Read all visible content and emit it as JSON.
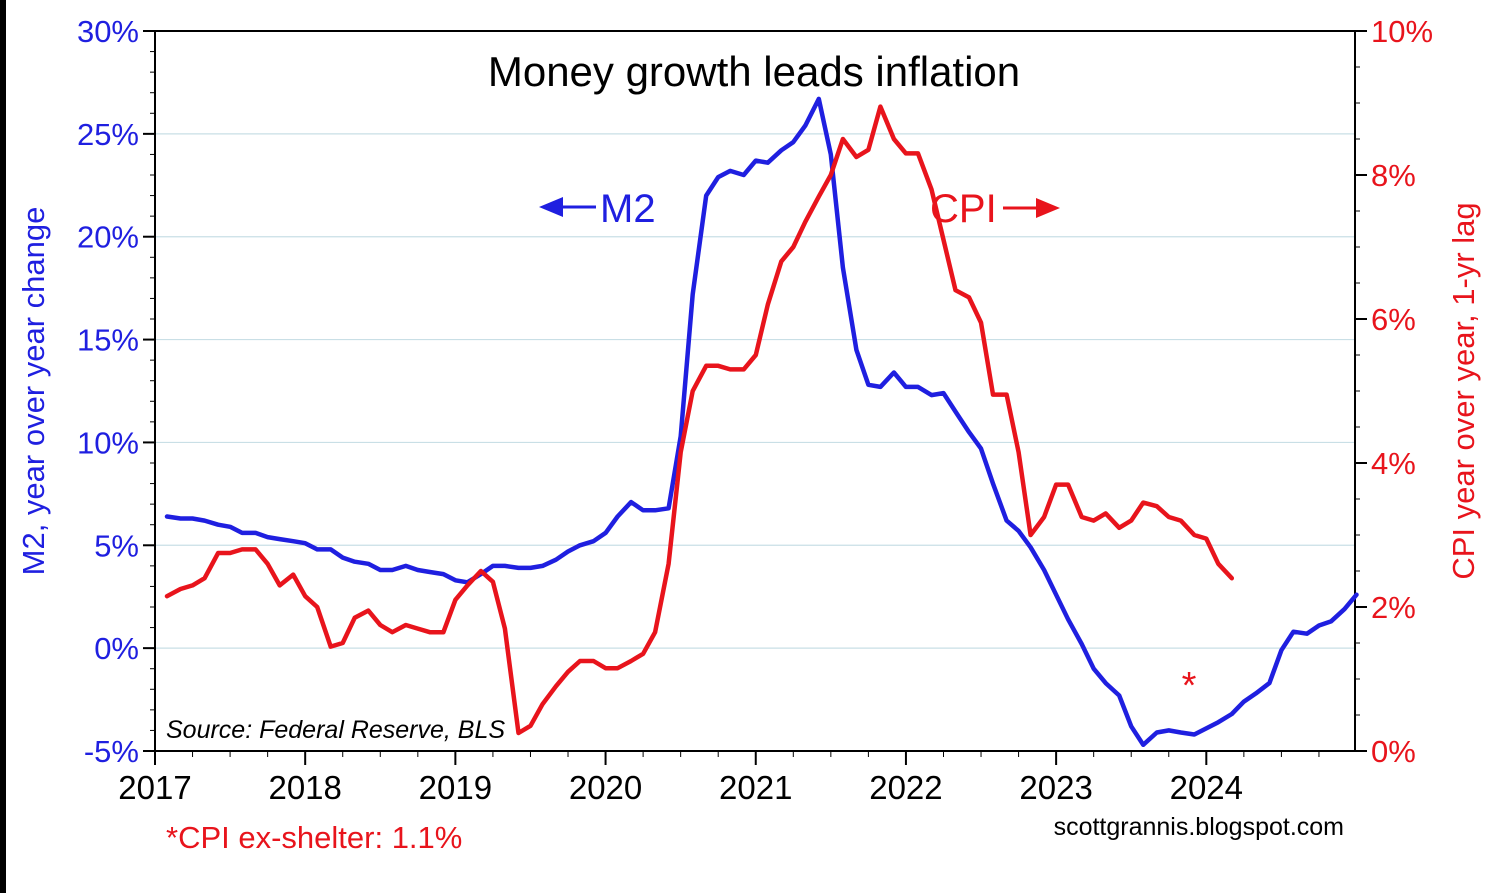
{
  "chart_data": {
    "type": "line",
    "title": "Money growth leads inflation",
    "xlabel": "",
    "ylabel": "M2, year over year change",
    "ylabel_right": "CPI year over year,  1-yr lag",
    "x_ticks": [
      "2017",
      "2018",
      "2019",
      "2020",
      "2021",
      "2022",
      "2023",
      "2024"
    ],
    "xlim": [
      2017,
      2024.99
    ],
    "y_left": {
      "ylim": [
        -5,
        30
      ],
      "ticks": [
        "30%",
        "25%",
        "20%",
        "15%",
        "10%",
        "5%",
        "0%",
        "-5%"
      ]
    },
    "y_right": {
      "ylim": [
        0,
        10
      ],
      "ticks": [
        "10%",
        "8%",
        "6%",
        "4%",
        "2%",
        "0%"
      ]
    },
    "grid": "horizontal",
    "series": [
      {
        "name": "M2",
        "axis": "left",
        "color": "#1f1fe0",
        "label": "M2",
        "points": [
          [
            2017.08,
            6.4
          ],
          [
            2017.17,
            6.3
          ],
          [
            2017.25,
            6.3
          ],
          [
            2017.33,
            6.2
          ],
          [
            2017.42,
            6.0
          ],
          [
            2017.5,
            5.9
          ],
          [
            2017.58,
            5.6
          ],
          [
            2017.67,
            5.6
          ],
          [
            2017.75,
            5.4
          ],
          [
            2017.83,
            5.3
          ],
          [
            2017.92,
            5.2
          ],
          [
            2018.0,
            5.1
          ],
          [
            2018.08,
            4.8
          ],
          [
            2018.17,
            4.8
          ],
          [
            2018.25,
            4.4
          ],
          [
            2018.33,
            4.2
          ],
          [
            2018.42,
            4.1
          ],
          [
            2018.5,
            3.8
          ],
          [
            2018.58,
            3.8
          ],
          [
            2018.67,
            4.0
          ],
          [
            2018.75,
            3.8
          ],
          [
            2018.83,
            3.7
          ],
          [
            2018.92,
            3.6
          ],
          [
            2019.0,
            3.3
          ],
          [
            2019.08,
            3.2
          ],
          [
            2019.17,
            3.6
          ],
          [
            2019.25,
            4.0
          ],
          [
            2019.33,
            4.0
          ],
          [
            2019.42,
            3.9
          ],
          [
            2019.5,
            3.9
          ],
          [
            2019.58,
            4.0
          ],
          [
            2019.67,
            4.3
          ],
          [
            2019.75,
            4.7
          ],
          [
            2019.83,
            5.0
          ],
          [
            2019.92,
            5.2
          ],
          [
            2020.0,
            5.6
          ],
          [
            2020.08,
            6.4
          ],
          [
            2020.17,
            7.1
          ],
          [
            2020.25,
            6.7
          ],
          [
            2020.33,
            6.7
          ],
          [
            2020.42,
            6.8
          ],
          [
            2020.5,
            10.3
          ],
          [
            2020.58,
            17.2
          ],
          [
            2020.67,
            22.0
          ],
          [
            2020.75,
            22.9
          ],
          [
            2020.83,
            23.2
          ],
          [
            2020.92,
            23.0
          ],
          [
            2021.0,
            23.7
          ],
          [
            2021.08,
            23.6
          ],
          [
            2021.17,
            24.2
          ],
          [
            2021.25,
            24.6
          ],
          [
            2021.33,
            25.4
          ],
          [
            2021.42,
            26.7
          ],
          [
            2021.5,
            24.0
          ],
          [
            2021.58,
            18.5
          ],
          [
            2021.67,
            14.5
          ],
          [
            2021.75,
            12.8
          ],
          [
            2021.83,
            12.7
          ],
          [
            2021.92,
            13.4
          ],
          [
            2022.0,
            12.7
          ],
          [
            2022.08,
            12.7
          ],
          [
            2022.17,
            12.3
          ],
          [
            2022.25,
            12.4
          ],
          [
            2022.33,
            11.5
          ],
          [
            2022.42,
            10.5
          ],
          [
            2022.5,
            9.7
          ],
          [
            2022.58,
            8.0
          ],
          [
            2022.67,
            6.2
          ],
          [
            2022.75,
            5.7
          ],
          [
            2022.83,
            4.9
          ],
          [
            2022.92,
            3.8
          ],
          [
            2023.0,
            2.6
          ],
          [
            2023.08,
            1.4
          ],
          [
            2023.17,
            0.2
          ],
          [
            2023.25,
            -1.0
          ],
          [
            2023.33,
            -1.7
          ],
          [
            2023.42,
            -2.3
          ],
          [
            2023.5,
            -3.8
          ],
          [
            2023.58,
            -4.7
          ],
          [
            2023.67,
            -4.1
          ],
          [
            2023.75,
            -4.0
          ],
          [
            2023.83,
            -4.1
          ],
          [
            2023.92,
            -4.2
          ],
          [
            2024.0,
            -3.9
          ],
          [
            2024.08,
            -3.6
          ],
          [
            2024.17,
            -3.2
          ],
          [
            2024.25,
            -2.6
          ],
          [
            2024.33,
            -2.2
          ],
          [
            2024.42,
            -1.7
          ],
          [
            2024.5,
            -0.1
          ],
          [
            2024.58,
            0.8
          ],
          [
            2024.67,
            0.7
          ],
          [
            2024.75,
            1.1
          ],
          [
            2024.83,
            1.3
          ],
          [
            2024.92,
            1.9
          ],
          [
            2025.0,
            2.6
          ]
        ]
      },
      {
        "name": "CPI",
        "axis": "right",
        "color": "#e8141c",
        "label": "CPI",
        "points": [
          [
            2017.08,
            2.15
          ],
          [
            2017.17,
            2.25
          ],
          [
            2017.25,
            2.3
          ],
          [
            2017.33,
            2.4
          ],
          [
            2017.42,
            2.75
          ],
          [
            2017.5,
            2.75
          ],
          [
            2017.58,
            2.8
          ],
          [
            2017.67,
            2.8
          ],
          [
            2017.75,
            2.6
          ],
          [
            2017.83,
            2.3
          ],
          [
            2017.92,
            2.45
          ],
          [
            2018.0,
            2.15
          ],
          [
            2018.08,
            2.0
          ],
          [
            2018.17,
            1.45
          ],
          [
            2018.25,
            1.5
          ],
          [
            2018.33,
            1.85
          ],
          [
            2018.42,
            1.95
          ],
          [
            2018.5,
            1.75
          ],
          [
            2018.58,
            1.65
          ],
          [
            2018.67,
            1.75
          ],
          [
            2018.75,
            1.7
          ],
          [
            2018.83,
            1.65
          ],
          [
            2018.92,
            1.65
          ],
          [
            2019.0,
            2.1
          ],
          [
            2019.08,
            2.3
          ],
          [
            2019.17,
            2.5
          ],
          [
            2019.25,
            2.35
          ],
          [
            2019.33,
            1.7
          ],
          [
            2019.42,
            0.25
          ],
          [
            2019.5,
            0.35
          ],
          [
            2019.58,
            0.65
          ],
          [
            2019.67,
            0.9
          ],
          [
            2019.75,
            1.1
          ],
          [
            2019.83,
            1.25
          ],
          [
            2019.92,
            1.25
          ],
          [
            2020.0,
            1.15
          ],
          [
            2020.08,
            1.15
          ],
          [
            2020.17,
            1.25
          ],
          [
            2020.25,
            1.35
          ],
          [
            2020.33,
            1.65
          ],
          [
            2020.42,
            2.6
          ],
          [
            2020.5,
            4.15
          ],
          [
            2020.58,
            5.0
          ],
          [
            2020.67,
            5.35
          ],
          [
            2020.75,
            5.35
          ],
          [
            2020.83,
            5.3
          ],
          [
            2020.92,
            5.3
          ],
          [
            2021.0,
            5.5
          ],
          [
            2021.08,
            6.2
          ],
          [
            2021.17,
            6.8
          ],
          [
            2021.25,
            7.0
          ],
          [
            2021.33,
            7.35
          ],
          [
            2021.42,
            7.7
          ],
          [
            2021.5,
            8.0
          ],
          [
            2021.58,
            8.5
          ],
          [
            2021.67,
            8.25
          ],
          [
            2021.75,
            8.35
          ],
          [
            2021.83,
            8.95
          ],
          [
            2021.92,
            8.5
          ],
          [
            2022.0,
            8.3
          ],
          [
            2022.08,
            8.3
          ],
          [
            2022.17,
            7.8
          ],
          [
            2022.25,
            7.1
          ],
          [
            2022.33,
            6.4
          ],
          [
            2022.42,
            6.3
          ],
          [
            2022.5,
            5.95
          ],
          [
            2022.58,
            4.95
          ],
          [
            2022.67,
            4.95
          ],
          [
            2022.75,
            4.15
          ],
          [
            2022.83,
            3.0
          ],
          [
            2022.92,
            3.25
          ],
          [
            2023.0,
            3.7
          ],
          [
            2023.08,
            3.7
          ],
          [
            2023.17,
            3.25
          ],
          [
            2023.25,
            3.2
          ],
          [
            2023.33,
            3.3
          ],
          [
            2023.42,
            3.1
          ],
          [
            2023.5,
            3.2
          ],
          [
            2023.58,
            3.45
          ],
          [
            2023.67,
            3.4
          ],
          [
            2023.75,
            3.25
          ],
          [
            2023.83,
            3.2
          ],
          [
            2023.92,
            3.0
          ],
          [
            2024.0,
            2.95
          ],
          [
            2024.08,
            2.6
          ],
          [
            2024.17,
            2.4
          ]
        ]
      }
    ],
    "annotations": {
      "m2_label": "M2",
      "cpi_label": "CPI",
      "asterisk": "*",
      "source": "Source: Federal Reserve, BLS",
      "footnote": "*CPI ex-shelter: 1.1%",
      "credit": "scottgrannis.blogspot.com"
    }
  }
}
